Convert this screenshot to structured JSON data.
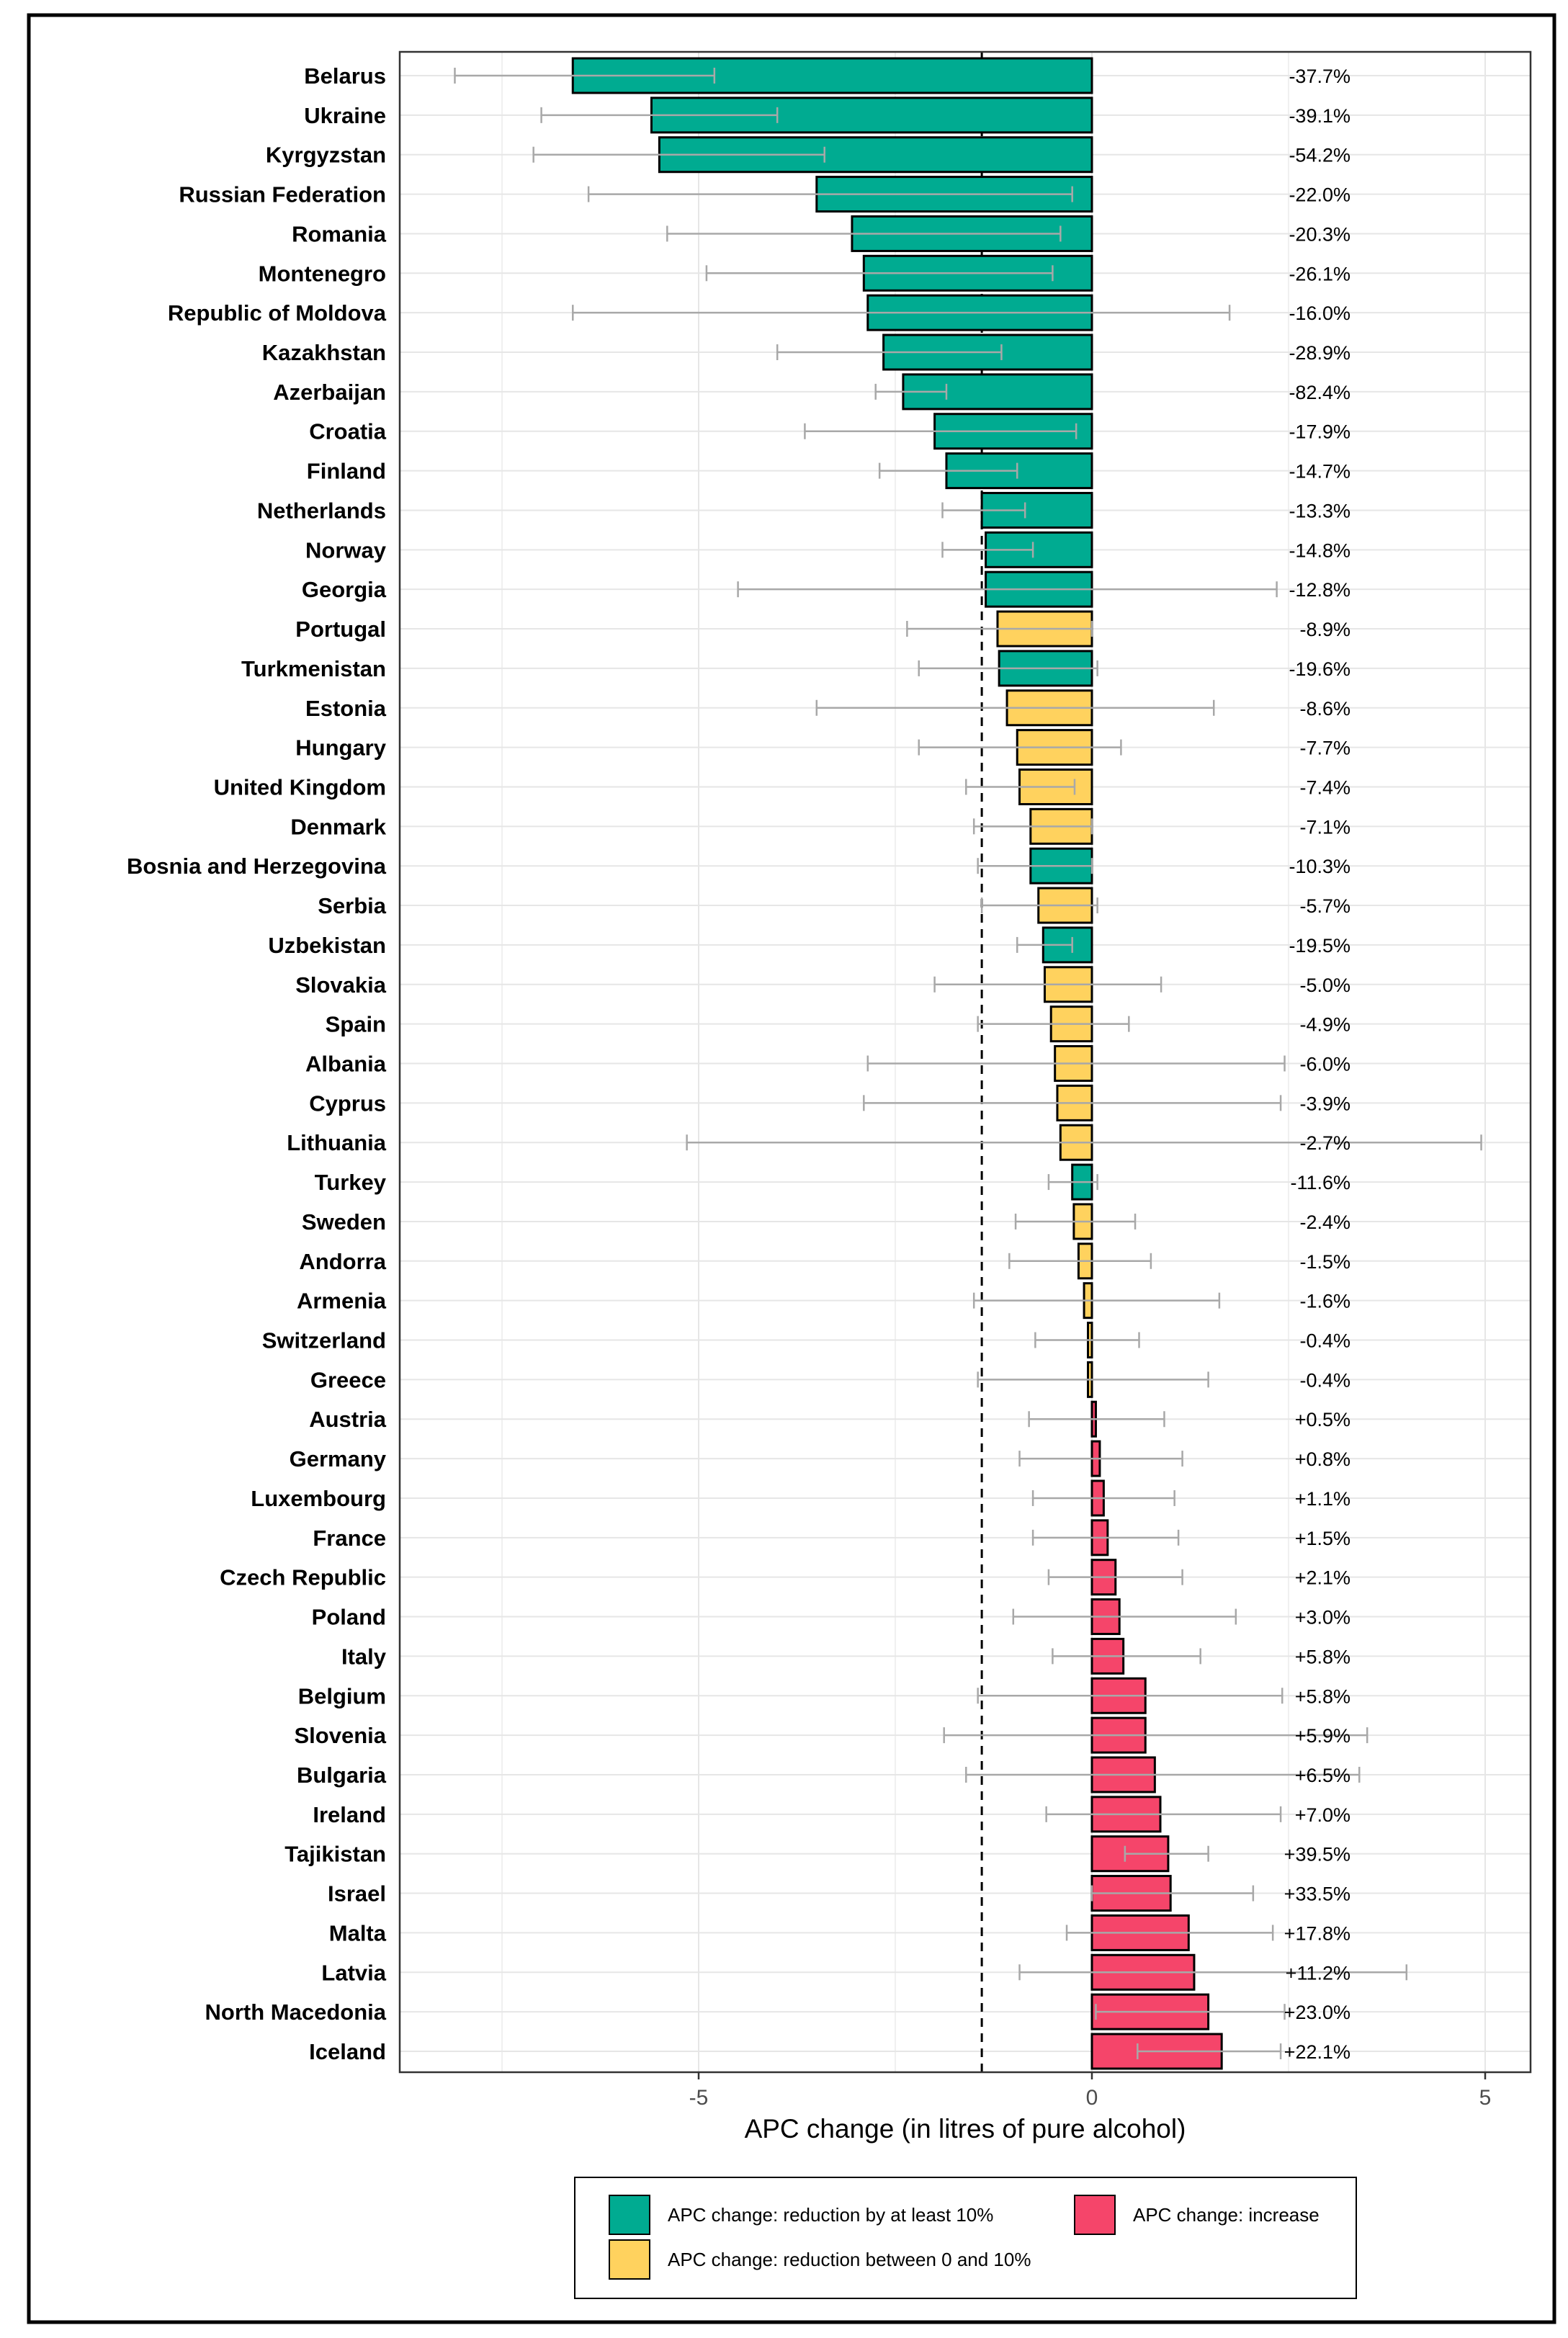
{
  "chart_data": {
    "type": "bar",
    "orientation": "horizontal",
    "xlabel": "APC change (in litres of pure alcohol)",
    "xlim": [
      -8.8,
      5.6
    ],
    "xticks": [
      -5,
      0,
      5
    ],
    "xtick_labels": [
      "-5",
      "0",
      "5"
    ],
    "reference_line": -1.4,
    "grid": true,
    "legend_position": "bottom",
    "colors": {
      "reduction_10": "#00AB91",
      "reduction_0_10": "#FFD25E",
      "increase": "#F5456A",
      "error_bar": "#A8A8A8",
      "grid": "#E6E6E6"
    },
    "legend": [
      {
        "key": "reduction_10",
        "label": "APC change: reduction by at least 10%"
      },
      {
        "key": "increase",
        "label": "APC change: increase"
      },
      {
        "key": "reduction_0_10",
        "label": "APC change: reduction between 0 and 10%"
      }
    ],
    "categories": [
      "Belarus",
      "Ukraine",
      "Kyrgyzstan",
      "Russian Federation",
      "Romania",
      "Montenegro",
      "Republic of Moldova",
      "Kazakhstan",
      "Azerbaijan",
      "Croatia",
      "Finland",
      "Netherlands",
      "Norway",
      "Georgia",
      "Portugal",
      "Turkmenistan",
      "Estonia",
      "Hungary",
      "United Kingdom",
      "Denmark",
      "Bosnia and Herzegovina",
      "Serbia",
      "Uzbekistan",
      "Slovakia",
      "Spain",
      "Albania",
      "Cyprus",
      "Lithuania",
      "Turkey",
      "Sweden",
      "Andorra",
      "Armenia",
      "Switzerland",
      "Greece",
      "Austria",
      "Germany",
      "Luxembourg",
      "France",
      "Czech Republic",
      "Poland",
      "Italy",
      "Belgium",
      "Slovenia",
      "Bulgaria",
      "Ireland",
      "Tajikistan",
      "Israel",
      "Malta",
      "Latvia",
      "North Macedonia",
      "Iceland"
    ],
    "values": [
      -6.6,
      -5.6,
      -5.5,
      -3.5,
      -3.05,
      -2.9,
      -2.85,
      -2.65,
      -2.4,
      -2.0,
      -1.85,
      -1.4,
      -1.35,
      -1.35,
      -1.2,
      -1.18,
      -1.08,
      -0.95,
      -0.92,
      -0.78,
      -0.78,
      -0.68,
      -0.62,
      -0.6,
      -0.52,
      -0.47,
      -0.44,
      -0.4,
      -0.25,
      -0.23,
      -0.17,
      -0.1,
      -0.05,
      -0.05,
      0.05,
      0.1,
      0.15,
      0.2,
      0.3,
      0.35,
      0.4,
      0.68,
      0.68,
      0.8,
      0.87,
      0.97,
      1.0,
      1.23,
      1.3,
      1.48,
      1.65
    ],
    "ci_low": [
      -8.1,
      -7.0,
      -7.1,
      -6.4,
      -5.4,
      -4.9,
      -6.6,
      -4.0,
      -2.75,
      -3.65,
      -2.7,
      -1.9,
      -1.9,
      -4.5,
      -2.35,
      -2.2,
      -3.5,
      -2.2,
      -1.6,
      -1.5,
      -1.45,
      -1.4,
      -0.95,
      -2.0,
      -1.45,
      -2.85,
      -2.9,
      -5.15,
      -0.55,
      -0.97,
      -1.05,
      -1.5,
      -0.72,
      -1.45,
      -0.8,
      -0.92,
      -0.75,
      -0.75,
      -0.55,
      -1.0,
      -0.5,
      -1.45,
      -1.88,
      -1.6,
      -0.58,
      0.42,
      0.0,
      -0.32,
      -0.92,
      0.05,
      0.58
    ],
    "ci_high": [
      -4.8,
      -4.0,
      -3.4,
      -0.25,
      -0.4,
      -0.5,
      1.75,
      -1.15,
      -1.85,
      -0.2,
      -0.95,
      -0.85,
      -0.75,
      2.35,
      0.0,
      0.07,
      1.55,
      0.37,
      -0.22,
      0.0,
      0.0,
      0.07,
      -0.25,
      0.88,
      0.47,
      2.45,
      2.4,
      4.95,
      0.07,
      0.55,
      0.75,
      1.62,
      0.6,
      1.48,
      0.92,
      1.15,
      1.05,
      1.1,
      1.15,
      1.83,
      1.38,
      2.42,
      3.5,
      3.4,
      2.4,
      1.48,
      2.05,
      2.3,
      4.0,
      2.45,
      2.4
    ],
    "colors_by_bar": [
      "reduction_10",
      "reduction_10",
      "reduction_10",
      "reduction_10",
      "reduction_10",
      "reduction_10",
      "reduction_10",
      "reduction_10",
      "reduction_10",
      "reduction_10",
      "reduction_10",
      "reduction_10",
      "reduction_10",
      "reduction_10",
      "reduction_0_10",
      "reduction_10",
      "reduction_0_10",
      "reduction_0_10",
      "reduction_0_10",
      "reduction_0_10",
      "reduction_10",
      "reduction_0_10",
      "reduction_10",
      "reduction_0_10",
      "reduction_0_10",
      "reduction_0_10",
      "reduction_0_10",
      "reduction_0_10",
      "reduction_10",
      "reduction_0_10",
      "reduction_0_10",
      "reduction_0_10",
      "reduction_0_10",
      "reduction_0_10",
      "increase",
      "increase",
      "increase",
      "increase",
      "increase",
      "increase",
      "increase",
      "increase",
      "increase",
      "increase",
      "increase",
      "increase",
      "increase",
      "increase",
      "increase",
      "increase",
      "increase"
    ],
    "percent_labels": [
      "-37.7%",
      "-39.1%",
      "-54.2%",
      "-22.0%",
      "-20.3%",
      "-26.1%",
      "-16.0%",
      "-28.9%",
      "-82.4%",
      "-17.9%",
      "-14.7%",
      "-13.3%",
      "-14.8%",
      "-12.8%",
      "-8.9%",
      "-19.6%",
      "-8.6%",
      "-7.7%",
      "-7.4%",
      "-7.1%",
      "-10.3%",
      "-5.7%",
      "-19.5%",
      "-5.0%",
      "-4.9%",
      "-6.0%",
      "-3.9%",
      "-2.7%",
      "-11.6%",
      "-2.4%",
      "-1.5%",
      "-1.6%",
      "-0.4%",
      "-0.4%",
      "+0.5%",
      "+0.8%",
      "+1.1%",
      "+1.5%",
      "+2.1%",
      "+3.0%",
      "+5.8%",
      "+5.8%",
      "+5.9%",
      "+6.5%",
      "+7.0%",
      "+39.5%",
      "+33.5%",
      "+17.8%",
      "+11.2%",
      "+23.0%",
      "+22.1%"
    ]
  }
}
